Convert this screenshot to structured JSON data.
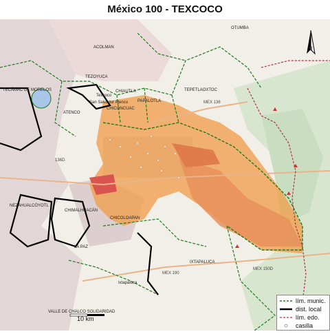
{
  "title": "México 100 - TEXCOCO",
  "north_arrow": {
    "label": "N"
  },
  "scale": {
    "label": "10 km"
  },
  "legend": {
    "items": [
      {
        "label": "lím. munic.",
        "style": "green-dashed"
      },
      {
        "label": "dist. local",
        "style": "black-thick"
      },
      {
        "label": "lím. edo.",
        "style": "red-dashed"
      },
      {
        "label": "casilla",
        "style": "circle"
      }
    ]
  },
  "places": [
    {
      "name": "OTUMBA"
    },
    {
      "name": "ACOLMAN"
    },
    {
      "name": "TEZOYUCA"
    },
    {
      "name": "CHIAUTLA"
    },
    {
      "name": "TEPETLAOXTOC"
    },
    {
      "name": "PAPALOTLA"
    },
    {
      "name": "ATENCO"
    },
    {
      "name": "CHICONCUAC"
    },
    {
      "name": "San Salvador Atenco"
    },
    {
      "name": "TECÁMAC DE MORELOS"
    },
    {
      "name": "NEZAHUALCÓYOTL"
    },
    {
      "name": "CHIMALHUACÁN"
    },
    {
      "name": "CHICOLOAPAN"
    },
    {
      "name": "LA PAZ"
    },
    {
      "name": "IXTAPALUCA"
    },
    {
      "name": "VALLE DE CHALCO SOLIDARIDAD"
    },
    {
      "name": "Texcoco"
    },
    {
      "name": "Ixtapaluca"
    }
  ],
  "roads": [
    {
      "label": "MEX 136"
    },
    {
      "label": "MEX 190"
    },
    {
      "label": "MEX 150D"
    },
    {
      "label": "136D"
    }
  ],
  "colors": {
    "district_fill": "#f0a050",
    "district_dark": "#e06b3a",
    "hotspot": "#d9534f",
    "muni_line": "#1f7a1f",
    "district_line": "#000000",
    "state_line": "#b03040",
    "urban": "#d9c4c4",
    "green": "#cfe8c9"
  }
}
